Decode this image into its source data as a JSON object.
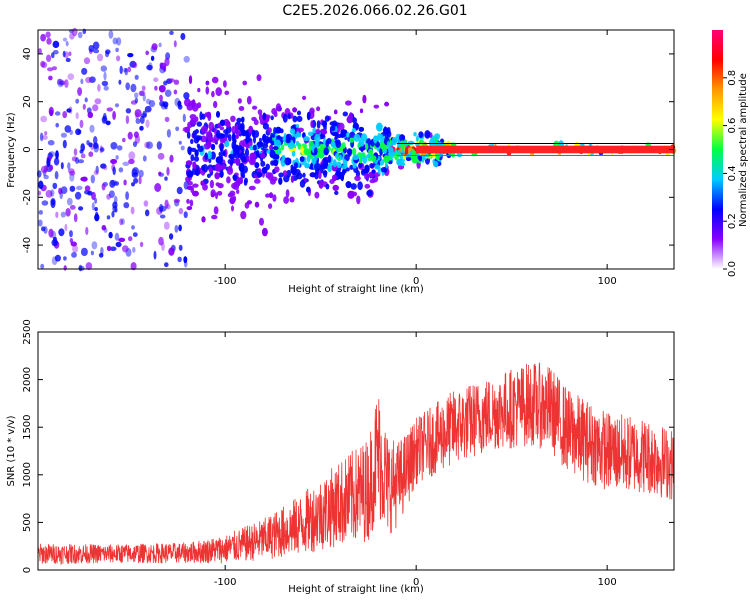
{
  "title": "C2E5.2026.066.02.26.G01",
  "chart_data": [
    {
      "type": "heatmap",
      "xlabel": "Height of straight line (km)",
      "ylabel": "Frequency (Hz)",
      "xlim": [
        -198,
        135
      ],
      "ylim": [
        -50,
        50
      ],
      "xticks": [
        "-100",
        "0",
        "100"
      ],
      "xtick_values": [
        -100,
        0,
        100
      ],
      "yticks": [
        "-40",
        "-20",
        "0",
        "20",
        "40"
      ],
      "ytick_values": [
        -40,
        -20,
        0,
        20,
        40
      ],
      "colorbar": {
        "label": "Normalized spectral amplitude",
        "range": [
          0,
          1
        ],
        "ticks": [
          "0.0",
          "0.2",
          "0.4",
          "0.6",
          "0.8"
        ],
        "tick_values": [
          0.0,
          0.2,
          0.4,
          0.6,
          0.8
        ],
        "stops": [
          "#ffffff",
          "#8800ff",
          "#0000ff",
          "#00ccff",
          "#00ff44",
          "#ffff00",
          "#ff9900",
          "#ff0000",
          "#ff0077"
        ]
      },
      "signal": {
        "segments": [
          {
            "x_from": -198,
            "x_to": -120,
            "amplitude": 0.18,
            "freq_spread": 50
          },
          {
            "x_from": -120,
            "x_to": -75,
            "amplitude": 0.25,
            "freq_spread": 12
          },
          {
            "x_from": -75,
            "x_to": -15,
            "amplitude": 0.45,
            "freq_spread": 8
          },
          {
            "x_from": -15,
            "x_to": 15,
            "amplitude": 0.8,
            "freq_spread": 3
          },
          {
            "x_from": 15,
            "x_to": 135,
            "amplitude": 0.95,
            "freq_spread": 1
          }
        ]
      }
    },
    {
      "type": "line",
      "xlabel": "Height of straight line (km)",
      "ylabel": "SNR (10 * v/v)",
      "xlim": [
        -198,
        135
      ],
      "ylim": [
        0,
        2500
      ],
      "xticks": [
        "-100",
        "0",
        "100"
      ],
      "xtick_values": [
        -100,
        0,
        100
      ],
      "yticks": [
        "0",
        "500",
        "1000",
        "1500",
        "2000",
        "2500"
      ],
      "ytick_values": [
        0,
        500,
        1000,
        1500,
        2000,
        2500
      ],
      "series": [
        {
          "color": "#ee3333",
          "envelope": {
            "x": [
              -198,
              -160,
              -120,
              -100,
              -80,
              -60,
              -40,
              -25,
              -20,
              -15,
              -10,
              -5,
              0,
              20,
              40,
              60,
              70,
              80,
              100,
              120,
              135
            ],
            "mean": [
              170,
              170,
              180,
              220,
              320,
              480,
              700,
              850,
              1250,
              900,
              900,
              1050,
              1250,
              1500,
              1650,
              1750,
              1700,
              1450,
              1250,
              1200,
              1100
            ],
            "spread": [
              110,
              100,
              110,
              150,
              220,
              320,
              450,
              550,
              700,
              550,
              450,
              400,
              350,
              400,
              400,
              450,
              450,
              450,
              420,
              400,
              380
            ]
          }
        }
      ]
    }
  ]
}
